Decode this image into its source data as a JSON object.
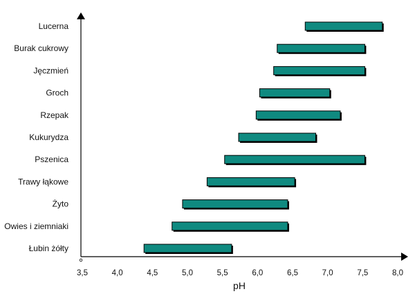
{
  "chart_data": {
    "type": "bar",
    "orientation": "horizontal",
    "style": "floating range bars",
    "categories": [
      "Lucerna",
      "Burak cukrowy",
      "Jęczmień",
      "Groch",
      "Rzepak",
      "Kukurydza",
      "Pszenica",
      "Trawy łąkowe",
      "Żyto",
      "Owies i ziemniaki",
      "Łubin żółty"
    ],
    "ranges": [
      [
        6.7,
        7.8
      ],
      [
        6.3,
        7.55
      ],
      [
        6.25,
        7.55
      ],
      [
        6.05,
        7.05
      ],
      [
        6.0,
        7.2
      ],
      [
        5.75,
        6.85
      ],
      [
        5.55,
        7.55
      ],
      [
        5.3,
        6.55
      ],
      [
        4.95,
        6.45
      ],
      [
        4.8,
        6.45
      ],
      [
        4.4,
        5.65
      ]
    ],
    "xlim": [
      3.5,
      8.0
    ],
    "xticks": [
      "3,5",
      "4,0",
      "4,5",
      "5,0",
      "5,5",
      "6,0",
      "6,5",
      "7,0",
      "7,5",
      "8,0"
    ],
    "xlabel": "pH",
    "ylabel": "",
    "title": "",
    "grid": false,
    "legend": "none",
    "colors": {
      "bar_fill": "#0f8a80",
      "bar_shadow": "#000000",
      "axis": "#000000"
    }
  }
}
